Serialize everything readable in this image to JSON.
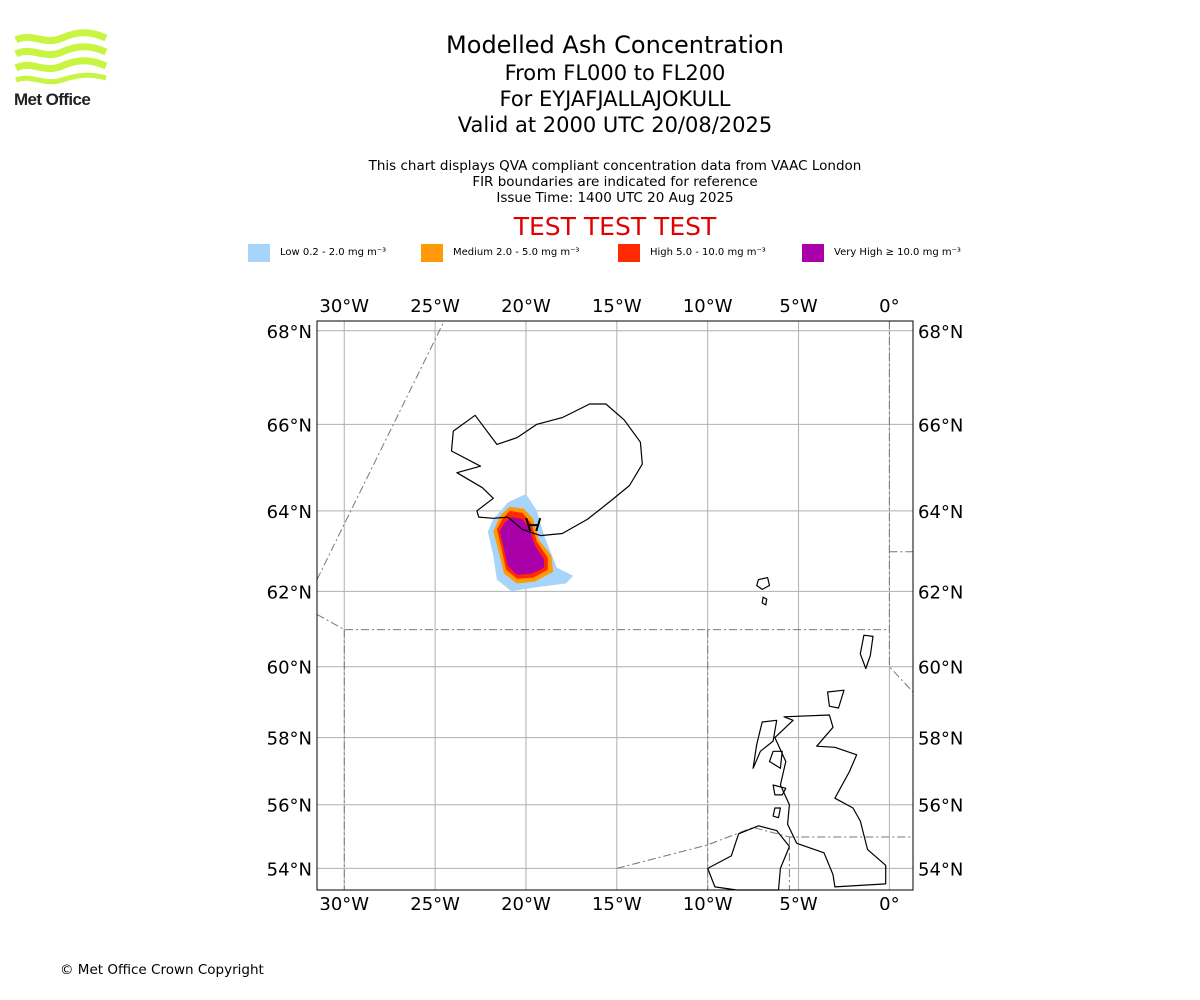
{
  "logo": {
    "text": "Met Office",
    "color": "#c8f542"
  },
  "title": "Modelled Ash Concentration",
  "subtitles": [
    "From FL000 to FL200",
    "For EYJAFJALLAJOKULL",
    "Valid at 2000 UTC 20/08/2025"
  ],
  "notes": [
    "This chart displays QVA compliant concentration data from VAAC London",
    "FIR boundaries are indicated for reference",
    "Issue Time: 1400 UTC 20 Aug 2025"
  ],
  "test_banner": "TEST TEST TEST",
  "legend": [
    {
      "label": "Low 0.2 - 2.0 mg m⁻³",
      "color": "#a6d4fb"
    },
    {
      "label": "Medium 2.0 - 5.0 mg m⁻³",
      "color": "#ff9a06"
    },
    {
      "label": "High 5.0 - 10.0 mg m⁻³",
      "color": "#ff2a00"
    },
    {
      "label": "Very High ≥ 10.0 mg m⁻³",
      "color": "#aa00aa"
    }
  ],
  "map": {
    "lon_range": [
      -31.5,
      1.3
    ],
    "lat_range": [
      53.3,
      68.2
    ],
    "lon_ticks": [
      {
        "value": -30,
        "label": "30°W"
      },
      {
        "value": -25,
        "label": "25°W"
      },
      {
        "value": -20,
        "label": "20°W"
      },
      {
        "value": -15,
        "label": "15°W"
      },
      {
        "value": -10,
        "label": "10°W"
      },
      {
        "value": -5,
        "label": "5°W"
      },
      {
        "value": 0,
        "label": "0°"
      }
    ],
    "lat_ticks": [
      {
        "value": 68,
        "label": "68°N"
      },
      {
        "value": 66,
        "label": "66°N"
      },
      {
        "value": 64,
        "label": "64°N"
      },
      {
        "value": 62,
        "label": "62°N"
      },
      {
        "value": 60,
        "label": "60°N"
      },
      {
        "value": 58,
        "label": "58°N"
      },
      {
        "value": 56,
        "label": "56°N"
      },
      {
        "value": 54,
        "label": "54°N"
      }
    ],
    "grid": true,
    "volcano": {
      "lon": -19.6,
      "lat": 63.63
    },
    "ash_levels": [
      {
        "level": "Low",
        "color": "#a6d4fb",
        "polygon": [
          [
            -21.8,
            63.8
          ],
          [
            -21.0,
            64.2
          ],
          [
            -20.0,
            64.4
          ],
          [
            -19.4,
            64.0
          ],
          [
            -19.0,
            63.4
          ],
          [
            -18.3,
            62.6
          ],
          [
            -17.4,
            62.4
          ],
          [
            -17.8,
            62.2
          ],
          [
            -19.5,
            62.1
          ],
          [
            -20.8,
            62.0
          ],
          [
            -21.6,
            62.3
          ],
          [
            -21.8,
            62.9
          ],
          [
            -22.1,
            63.5
          ]
        ]
      },
      {
        "level": "Medium",
        "color": "#ff9a06",
        "polygon": [
          [
            -21.4,
            63.9
          ],
          [
            -20.9,
            64.1
          ],
          [
            -20.1,
            64.05
          ],
          [
            -19.6,
            63.8
          ],
          [
            -19.3,
            63.3
          ],
          [
            -18.6,
            62.9
          ],
          [
            -18.5,
            62.5
          ],
          [
            -19.5,
            62.25
          ],
          [
            -20.5,
            62.2
          ],
          [
            -21.2,
            62.45
          ],
          [
            -21.5,
            63.0
          ],
          [
            -21.8,
            63.5
          ]
        ]
      },
      {
        "level": "High",
        "color": "#ff2a00",
        "polygon": [
          [
            -21.3,
            63.8
          ],
          [
            -20.9,
            64.0
          ],
          [
            -20.2,
            63.95
          ],
          [
            -19.7,
            63.7
          ],
          [
            -19.4,
            63.25
          ],
          [
            -18.8,
            62.85
          ],
          [
            -18.8,
            62.55
          ],
          [
            -19.6,
            62.35
          ],
          [
            -20.5,
            62.32
          ],
          [
            -21.1,
            62.55
          ],
          [
            -21.35,
            63.1
          ],
          [
            -21.6,
            63.55
          ]
        ]
      },
      {
        "level": "Very High",
        "color": "#aa00aa",
        "polygon": [
          [
            -21.2,
            63.7
          ],
          [
            -20.8,
            63.85
          ],
          [
            -20.2,
            63.8
          ],
          [
            -19.8,
            63.55
          ],
          [
            -19.5,
            63.15
          ],
          [
            -19.0,
            62.8
          ],
          [
            -19.0,
            62.6
          ],
          [
            -19.7,
            62.45
          ],
          [
            -20.5,
            62.42
          ],
          [
            -21.0,
            62.65
          ],
          [
            -21.25,
            63.15
          ],
          [
            -21.45,
            63.5
          ]
        ]
      }
    ],
    "iceland_outline": [
      [
        -22.6,
        63.85
      ],
      [
        -21.8,
        63.82
      ],
      [
        -21.0,
        63.85
      ],
      [
        -20.2,
        63.55
      ],
      [
        -19.2,
        63.4
      ],
      [
        -18.0,
        63.45
      ],
      [
        -16.6,
        63.8
      ],
      [
        -15.3,
        64.25
      ],
      [
        -14.3,
        64.6
      ],
      [
        -13.6,
        65.1
      ],
      [
        -13.7,
        65.6
      ],
      [
        -14.6,
        66.1
      ],
      [
        -15.6,
        66.45
      ],
      [
        -16.5,
        66.45
      ],
      [
        -18.0,
        66.15
      ],
      [
        -19.4,
        66.0
      ],
      [
        -20.5,
        65.7
      ],
      [
        -21.6,
        65.55
      ],
      [
        -22.8,
        66.2
      ],
      [
        -24.0,
        65.85
      ],
      [
        -24.1,
        65.4
      ],
      [
        -22.5,
        65.05
      ],
      [
        -23.8,
        64.9
      ],
      [
        -22.4,
        64.55
      ],
      [
        -21.8,
        64.3
      ],
      [
        -22.7,
        64.0
      ]
    ],
    "faroe_islands": [
      [
        [
          -7.2,
          62.3
        ],
        [
          -6.7,
          62.35
        ],
        [
          -6.6,
          62.15
        ],
        [
          -7.0,
          62.05
        ],
        [
          -7.3,
          62.15
        ]
      ],
      [
        [
          -6.95,
          61.85
        ],
        [
          -6.75,
          61.8
        ],
        [
          -6.8,
          61.65
        ],
        [
          -7.0,
          61.7
        ]
      ]
    ],
    "shetland": [
      [
        -1.4,
        60.85
      ],
      [
        -0.9,
        60.82
      ],
      [
        -1.05,
        60.3
      ],
      [
        -1.3,
        59.95
      ],
      [
        -1.6,
        60.35
      ]
    ],
    "orkney": [
      [
        -3.4,
        59.3
      ],
      [
        -2.5,
        59.35
      ],
      [
        -2.8,
        58.85
      ],
      [
        -3.3,
        58.9
      ]
    ],
    "britain_outline": [
      [
        -5.8,
        58.6
      ],
      [
        -3.3,
        58.65
      ],
      [
        -3.1,
        58.3
      ],
      [
        -4.0,
        57.75
      ],
      [
        -3.0,
        57.72
      ],
      [
        -1.8,
        57.5
      ],
      [
        -2.2,
        57.0
      ],
      [
        -3.0,
        56.2
      ],
      [
        -2.0,
        55.9
      ],
      [
        -1.6,
        55.5
      ],
      [
        -1.2,
        54.6
      ],
      [
        -0.2,
        54.1
      ],
      [
        -0.2,
        53.5
      ],
      [
        -3.0,
        53.4
      ],
      [
        -3.1,
        53.8
      ],
      [
        -3.6,
        54.5
      ],
      [
        -5.1,
        54.8
      ],
      [
        -5.6,
        55.4
      ],
      [
        -5.5,
        56.0
      ],
      [
        -6.0,
        56.6
      ],
      [
        -5.7,
        57.3
      ],
      [
        -6.3,
        58.0
      ],
      [
        -5.3,
        58.5
      ]
    ],
    "ireland_outline": [
      [
        -6.2,
        55.2
      ],
      [
        -5.5,
        54.7
      ],
      [
        -6.0,
        54.0
      ],
      [
        -6.1,
        53.3
      ],
      [
        -7.4,
        53.3
      ],
      [
        -8.4,
        53.3
      ],
      [
        -9.6,
        53.4
      ],
      [
        -10.0,
        54.0
      ],
      [
        -8.7,
        54.4
      ],
      [
        -8.3,
        55.1
      ],
      [
        -7.2,
        55.35
      ]
    ],
    "hebrides": [
      [
        [
          -7.0,
          58.45
        ],
        [
          -6.2,
          58.5
        ],
        [
          -6.4,
          57.9
        ],
        [
          -7.1,
          57.6
        ],
        [
          -7.5,
          57.1
        ],
        [
          -7.3,
          57.8
        ]
      ],
      [
        [
          -6.4,
          57.6
        ],
        [
          -5.9,
          57.6
        ],
        [
          -6.0,
          57.1
        ],
        [
          -6.6,
          57.3
        ]
      ],
      [
        [
          -6.4,
          56.6
        ],
        [
          -5.7,
          56.5
        ],
        [
          -5.9,
          56.3
        ],
        [
          -6.3,
          56.3
        ]
      ],
      [
        [
          -6.3,
          55.9
        ],
        [
          -6.0,
          55.9
        ],
        [
          -6.1,
          55.6
        ],
        [
          -6.4,
          55.65
        ]
      ]
    ],
    "fir_lines": [
      [
        [
          -31.5,
          62.3
        ],
        [
          -24.5,
          68.2
        ]
      ],
      [
        [
          -31.5,
          61.4
        ],
        [
          -30,
          61.0
        ],
        [
          0,
          61.0
        ]
      ],
      [
        [
          -15,
          54.0
        ],
        [
          -10,
          54.75
        ],
        [
          -7.5,
          55.3
        ],
        [
          -5.5,
          55.0
        ],
        [
          1.3,
          55.0
        ]
      ],
      [
        [
          -30,
          61.0
        ],
        [
          -30,
          53.3
        ]
      ],
      [
        [
          -10,
          61.0
        ],
        [
          -10,
          53.3
        ]
      ],
      [
        [
          -5.5,
          55.0
        ],
        [
          -5.5,
          53.3
        ]
      ],
      [
        [
          0,
          68.2
        ],
        [
          0,
          60.0
        ],
        [
          1.3,
          59.3
        ]
      ],
      [
        [
          0,
          63.0
        ],
        [
          1.3,
          63.0
        ]
      ]
    ]
  },
  "copyright": "© Met Office Crown Copyright"
}
